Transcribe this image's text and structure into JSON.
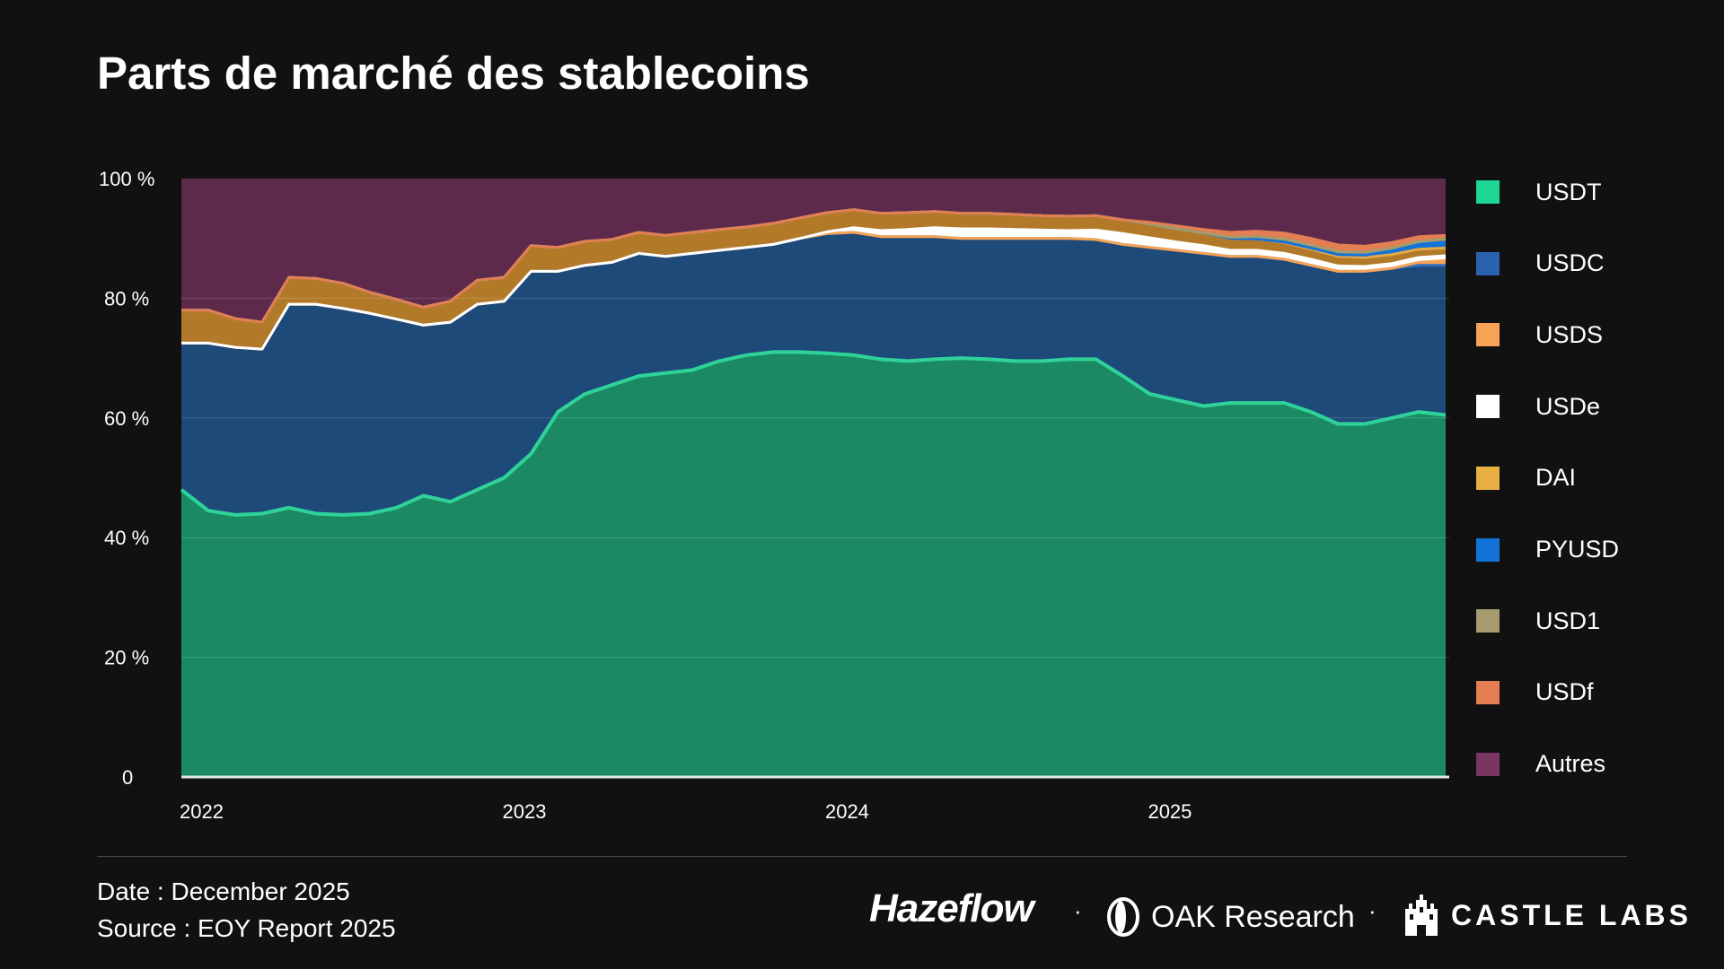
{
  "title": "Parts de marché des stablecoins",
  "footer": {
    "date": "Date : December 2025",
    "source": "Source : EOY Report 2025"
  },
  "logos": {
    "hazeflow": "Hazeflow",
    "oak": "OAK Research",
    "castle": "CASTLE LABS",
    "separator": "·"
  },
  "chart_data": {
    "type": "area",
    "stacked": true,
    "normalized": true,
    "title": "Parts de marché des stablecoins",
    "xlabel": "",
    "ylabel": "",
    "x_ticks": [
      "2022",
      "2023",
      "2024",
      "2025"
    ],
    "y_ticks": [
      "0",
      "20 %",
      "40 %",
      "60 %",
      "80 %",
      "100 %"
    ],
    "ylim": [
      0,
      100
    ],
    "grid": true,
    "legend_position": "right",
    "x": [
      "2022-01",
      "2022-02",
      "2022-03",
      "2022-04",
      "2022-05",
      "2022-06",
      "2022-07",
      "2022-08",
      "2022-09",
      "2022-10",
      "2022-11",
      "2022-12",
      "2023-01",
      "2023-02",
      "2023-03",
      "2023-04",
      "2023-05",
      "2023-06",
      "2023-07",
      "2023-08",
      "2023-09",
      "2023-10",
      "2023-11",
      "2023-12",
      "2024-01",
      "2024-02",
      "2024-03",
      "2024-04",
      "2024-05",
      "2024-06",
      "2024-07",
      "2024-08",
      "2024-09",
      "2024-10",
      "2024-11",
      "2024-12",
      "2025-01",
      "2025-02",
      "2025-03",
      "2025-04",
      "2025-05",
      "2025-06",
      "2025-07",
      "2025-08",
      "2025-09",
      "2025-10",
      "2025-11",
      "2025-12"
    ],
    "series": [
      {
        "name": "USDT",
        "color": "#1b8a63",
        "line_color": "#2fd39a",
        "values": [
          48.0,
          44.5,
          43.8,
          44.0,
          45.0,
          44.0,
          43.8,
          44.0,
          45.0,
          47.0,
          46.0,
          48.0,
          50.0,
          54.0,
          61.0,
          64.0,
          65.5,
          67.0,
          67.5,
          68.0,
          69.5,
          70.5,
          71.0,
          71.0,
          70.8,
          70.5,
          69.8,
          69.5,
          69.8,
          70.0,
          69.8,
          69.5,
          69.5,
          69.8,
          69.8,
          67.0,
          64.0,
          63.0,
          62.0,
          62.5,
          62.5,
          62.5,
          61.0,
          59.0,
          59.0,
          60.0,
          61.0,
          60.5
        ]
      },
      {
        "name": "USDC",
        "color": "#1e4a7a",
        "line_color": "#2f6fbd",
        "values": [
          24.5,
          28.0,
          28.0,
          27.5,
          34.0,
          35.0,
          34.5,
          33.5,
          31.5,
          28.5,
          30.0,
          31.0,
          29.5,
          30.5,
          23.5,
          21.5,
          20.5,
          20.5,
          19.5,
          19.5,
          18.5,
          18.0,
          18.0,
          19.0,
          20.0,
          20.5,
          20.5,
          20.8,
          20.5,
          20.0,
          20.2,
          20.5,
          20.5,
          20.2,
          20.0,
          22.0,
          24.5,
          25.0,
          25.5,
          24.5,
          24.5,
          24.0,
          24.5,
          25.5,
          25.5,
          25.0,
          24.5,
          25.0
        ]
      },
      {
        "name": "USDS",
        "color": "#f7a355",
        "line_color": "#f7a355",
        "values": [
          0,
          0,
          0,
          0,
          0,
          0,
          0,
          0,
          0,
          0,
          0,
          0,
          0,
          0,
          0,
          0,
          0,
          0,
          0,
          0,
          0,
          0,
          0,
          0,
          0,
          0,
          0,
          0,
          0,
          0,
          0,
          0,
          0,
          0,
          0,
          0,
          0,
          0,
          0,
          0,
          0,
          0,
          0,
          0,
          0,
          0,
          0.5,
          0.8
        ]
      },
      {
        "name": "USDe",
        "color": "#ffffff",
        "line_color": "#ffffff",
        "values": [
          0,
          0,
          0,
          0,
          0,
          0,
          0,
          0,
          0,
          0,
          0,
          0,
          0,
          0,
          0,
          0,
          0,
          0,
          0,
          0,
          0,
          0,
          0,
          0,
          0.3,
          0.8,
          1.0,
          1.2,
          1.5,
          1.6,
          1.6,
          1.5,
          1.4,
          1.3,
          1.6,
          1.8,
          1.6,
          1.4,
          1.3,
          1.0,
          1.0,
          1.0,
          1.0,
          0.9,
          0.8,
          0.8,
          0.8,
          0.8
        ]
      },
      {
        "name": "DAI",
        "color": "#b27a28",
        "line_color": "#e3a947",
        "values": [
          5.5,
          5.5,
          4.8,
          4.5,
          4.5,
          4.3,
          4.2,
          3.5,
          3.3,
          3.0,
          3.5,
          4.0,
          4.0,
          4.3,
          4.0,
          4.0,
          3.8,
          3.5,
          3.5,
          3.5,
          3.5,
          3.4,
          3.5,
          3.4,
          3.2,
          3.0,
          2.9,
          2.8,
          2.7,
          2.6,
          2.6,
          2.5,
          2.4,
          2.4,
          2.4,
          2.3,
          2.3,
          2.2,
          2.1,
          2.0,
          1.9,
          1.8,
          1.7,
          1.6,
          1.5,
          1.5,
          1.4,
          1.3
        ]
      },
      {
        "name": "PYUSD",
        "color": "#1273d9",
        "line_color": "#1273d9",
        "values": [
          0,
          0,
          0,
          0,
          0,
          0,
          0,
          0,
          0,
          0,
          0,
          0,
          0,
          0,
          0,
          0,
          0,
          0,
          0,
          0,
          0,
          0,
          0,
          0,
          0,
          0,
          0,
          0,
          0,
          0,
          0,
          0,
          0,
          0,
          0,
          0,
          0,
          0,
          0,
          0,
          0,
          0.1,
          0.2,
          0.3,
          0.4,
          0.6,
          0.8,
          1.0
        ]
      },
      {
        "name": "USD1",
        "color": "#a59b6c",
        "line_color": "#a59b6c",
        "values": [
          0,
          0,
          0,
          0,
          0,
          0,
          0,
          0,
          0,
          0,
          0,
          0,
          0,
          0,
          0,
          0,
          0,
          0,
          0,
          0,
          0,
          0,
          0,
          0,
          0,
          0,
          0,
          0,
          0,
          0,
          0,
          0,
          0,
          0,
          0,
          0,
          0,
          0,
          0,
          0.2,
          0.4,
          0.5,
          0.5,
          0.5,
          0.5,
          0.5,
          0.5,
          0.5
        ]
      },
      {
        "name": "USDf",
        "color": "#e37f52",
        "line_color": "#e37f52",
        "values": [
          0,
          0,
          0,
          0,
          0,
          0,
          0,
          0,
          0,
          0,
          0,
          0,
          0,
          0,
          0,
          0,
          0,
          0,
          0,
          0,
          0,
          0,
          0,
          0,
          0,
          0,
          0,
          0,
          0,
          0,
          0,
          0,
          0,
          0,
          0,
          0,
          0.3,
          0.5,
          0.6,
          0.8,
          0.9,
          1.0,
          1.1,
          1.1,
          1.0,
          0.9,
          0.8,
          0.6
        ]
      },
      {
        "name": "Autres",
        "color": "#5e2a4c",
        "line_color": "#5e2a4c",
        "values": [
          22.0,
          22.0,
          23.4,
          24.0,
          16.5,
          16.7,
          17.5,
          19.0,
          20.2,
          21.5,
          20.5,
          17.0,
          16.5,
          11.2,
          11.5,
          10.5,
          10.2,
          9.0,
          9.5,
          9.0,
          8.5,
          8.1,
          7.5,
          6.6,
          5.7,
          5.2,
          5.8,
          5.7,
          5.5,
          5.8,
          5.8,
          6.0,
          6.2,
          6.3,
          6.2,
          6.9,
          7.3,
          7.9,
          8.5,
          9.0,
          8.8,
          9.2,
          10.0,
          11.1,
          11.3,
          10.7,
          9.7,
          9.5
        ]
      }
    ]
  }
}
